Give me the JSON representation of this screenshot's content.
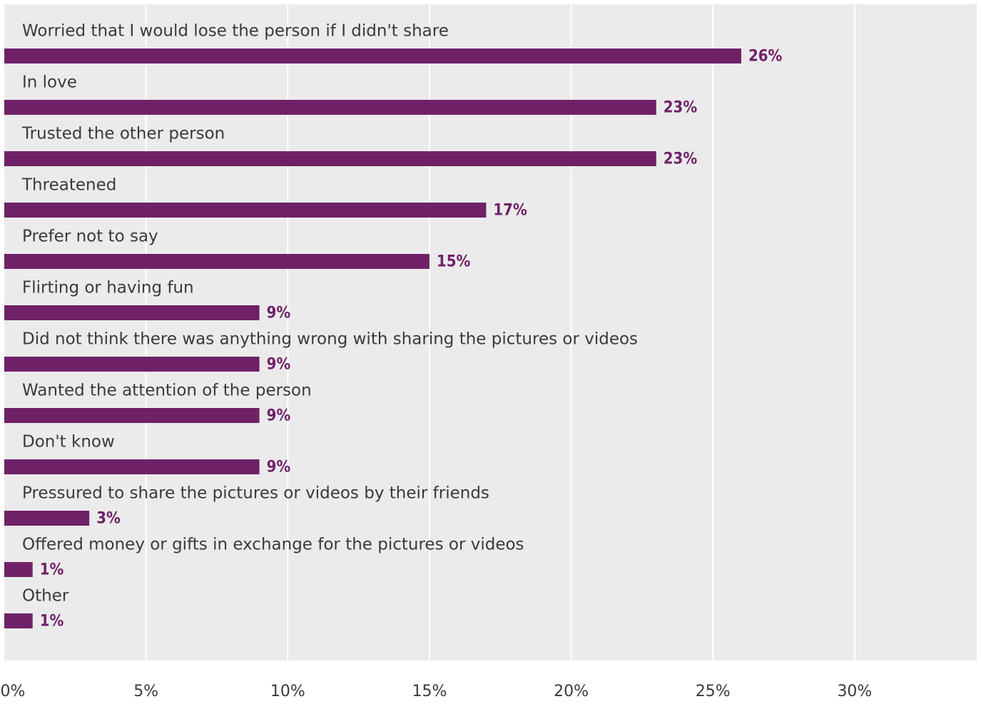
{
  "chart_data": {
    "type": "bar",
    "orientation": "horizontal",
    "categories": [
      "Worried that I would lose the person if I didn't share",
      "In love",
      "Trusted the other person",
      "Threatened",
      "Prefer not to say",
      "Flirting or having fun",
      "Did not think there was anything wrong with sharing the pictures or videos",
      "Wanted the attention of the person",
      "Don't know",
      "Pressured to share the pictures or videos by their friends",
      "Offered money or gifts in exchange for the pictures or videos",
      "Other"
    ],
    "values": [
      26,
      23,
      23,
      17,
      15,
      9,
      9,
      9,
      9,
      3,
      1,
      1
    ],
    "value_labels": [
      "26%",
      "23%",
      "23%",
      "17%",
      "15%",
      "9%",
      "9%",
      "9%",
      "9%",
      "3%",
      "1%",
      "1%"
    ],
    "x_ticks": [
      0,
      5,
      10,
      15,
      20,
      25,
      30
    ],
    "x_tick_labels": [
      "0%",
      "5%",
      "10%",
      "15%",
      "20%",
      "25%",
      "30%"
    ],
    "xlim": [
      0,
      34.2
    ],
    "grid": true,
    "legend": "none",
    "title": "",
    "xlabel": "",
    "ylabel": "",
    "colors": {
      "bar": "#6f2168",
      "value_label": "#6f2168",
      "plot_background": "#ebebeb",
      "grid": "#ffffff",
      "text": "#3a3a3a"
    }
  }
}
